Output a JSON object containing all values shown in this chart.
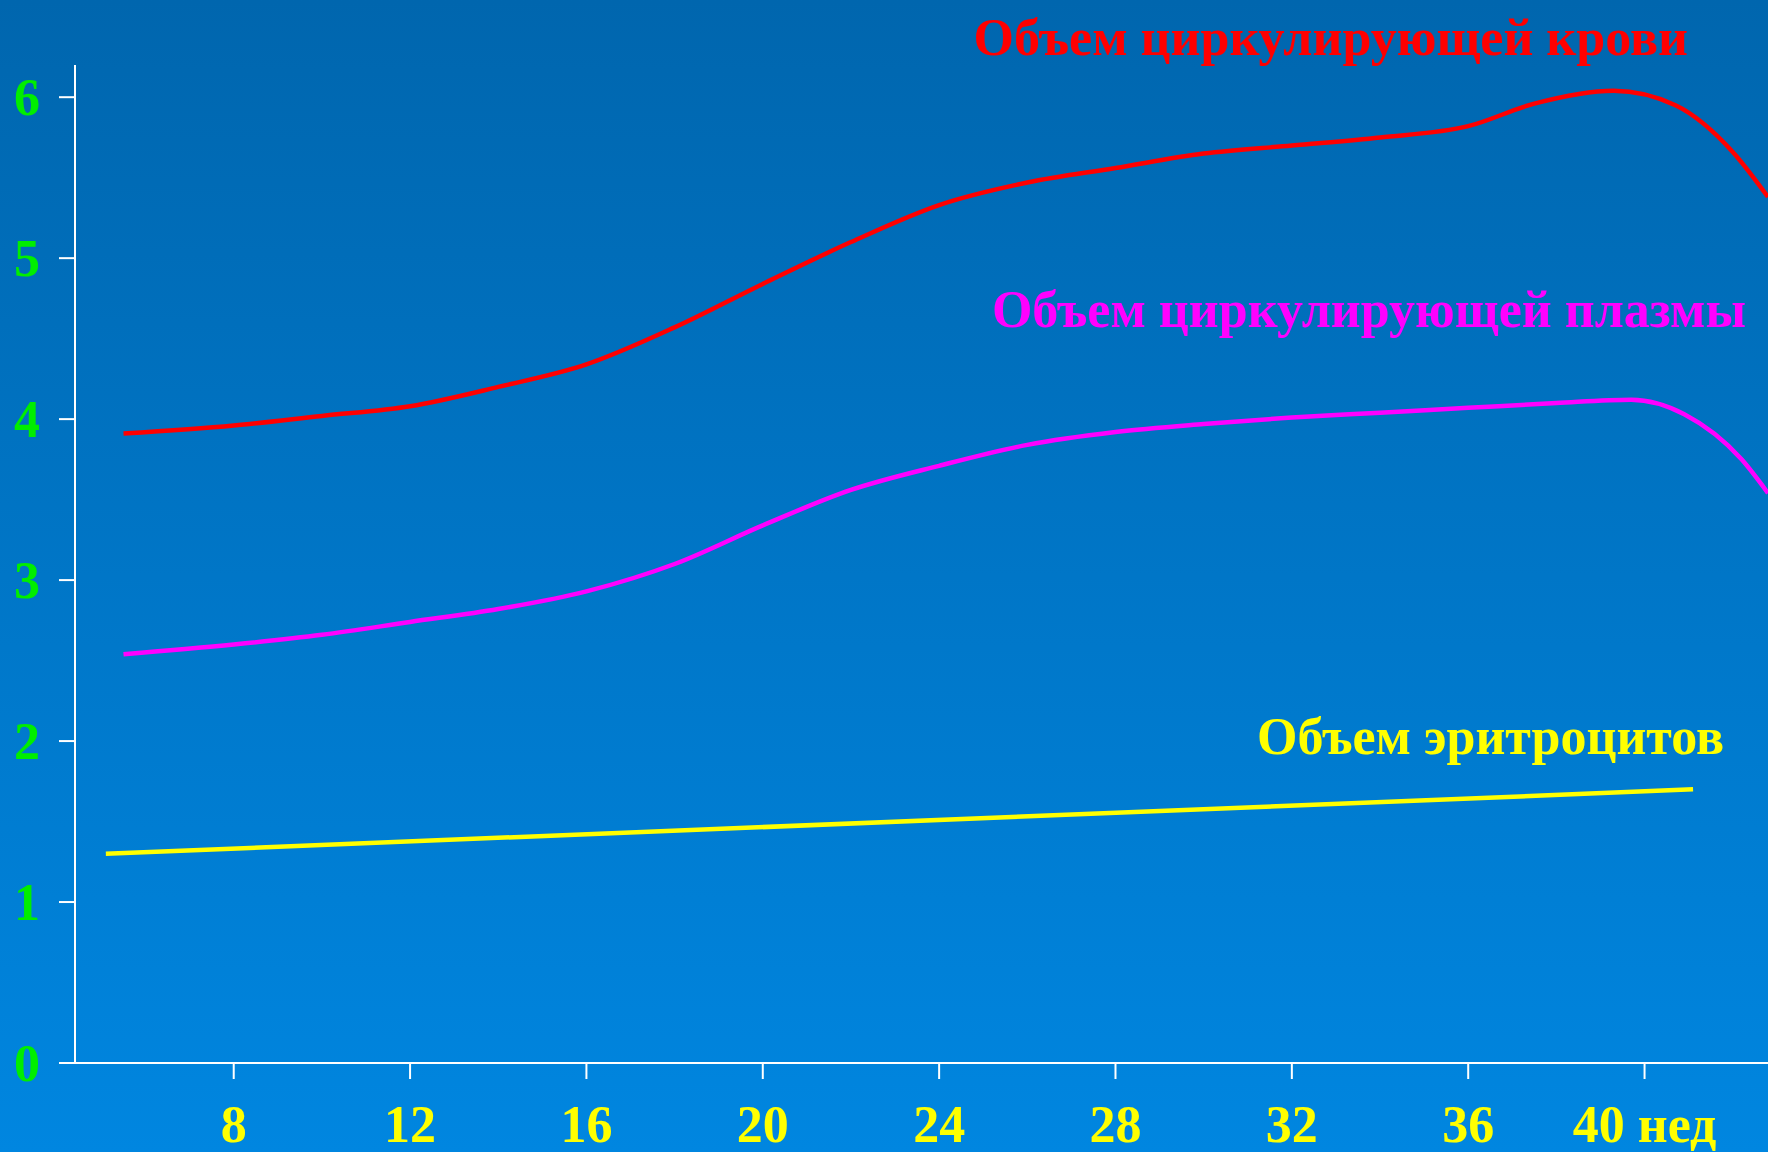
{
  "chart_data": {
    "type": "line",
    "xlim": [
      4.4,
      42.8
    ],
    "xticks": [
      8,
      12,
      16,
      20,
      24,
      28,
      32,
      36,
      {
        "value": 40,
        "label": "40 нед"
      }
    ],
    "ylim": [
      0,
      6.2
    ],
    "yticks": [
      0,
      1,
      2,
      3,
      4,
      5,
      6
    ],
    "series": [
      {
        "name": "Объем циркулирующей крови",
        "color": "#ff0000",
        "x": [
          5.5,
          8,
          10,
          12,
          14,
          16,
          18,
          20,
          22,
          24,
          26,
          28,
          30,
          32,
          34,
          36,
          37.5,
          39.3,
          40.7,
          42,
          42.8
        ],
        "values": [
          3.91,
          3.96,
          4.02,
          4.08,
          4.2,
          4.34,
          4.57,
          4.84,
          5.1,
          5.33,
          5.47,
          5.56,
          5.65,
          5.7,
          5.75,
          5.82,
          5.96,
          6.04,
          5.95,
          5.66,
          5.38
        ]
      },
      {
        "name": "Объем циркулирующей плазмы",
        "color": "#ff00ff",
        "x": [
          5.5,
          8,
          10,
          12,
          14,
          16,
          18,
          20,
          22,
          24,
          26,
          28,
          30,
          32,
          34,
          36,
          38,
          39.7,
          40.9,
          42.2,
          42.8
        ],
        "values": [
          2.54,
          2.6,
          2.66,
          2.74,
          2.82,
          2.93,
          3.1,
          3.34,
          3.56,
          3.71,
          3.84,
          3.92,
          3.97,
          4.01,
          4.04,
          4.07,
          4.1,
          4.12,
          4.03,
          3.75,
          3.54
        ]
      },
      {
        "name": "Объем эритроцитов",
        "color": "#ffff00",
        "x": [
          5.1,
          41.1
        ],
        "values": [
          1.3,
          1.7
        ]
      }
    ]
  }
}
